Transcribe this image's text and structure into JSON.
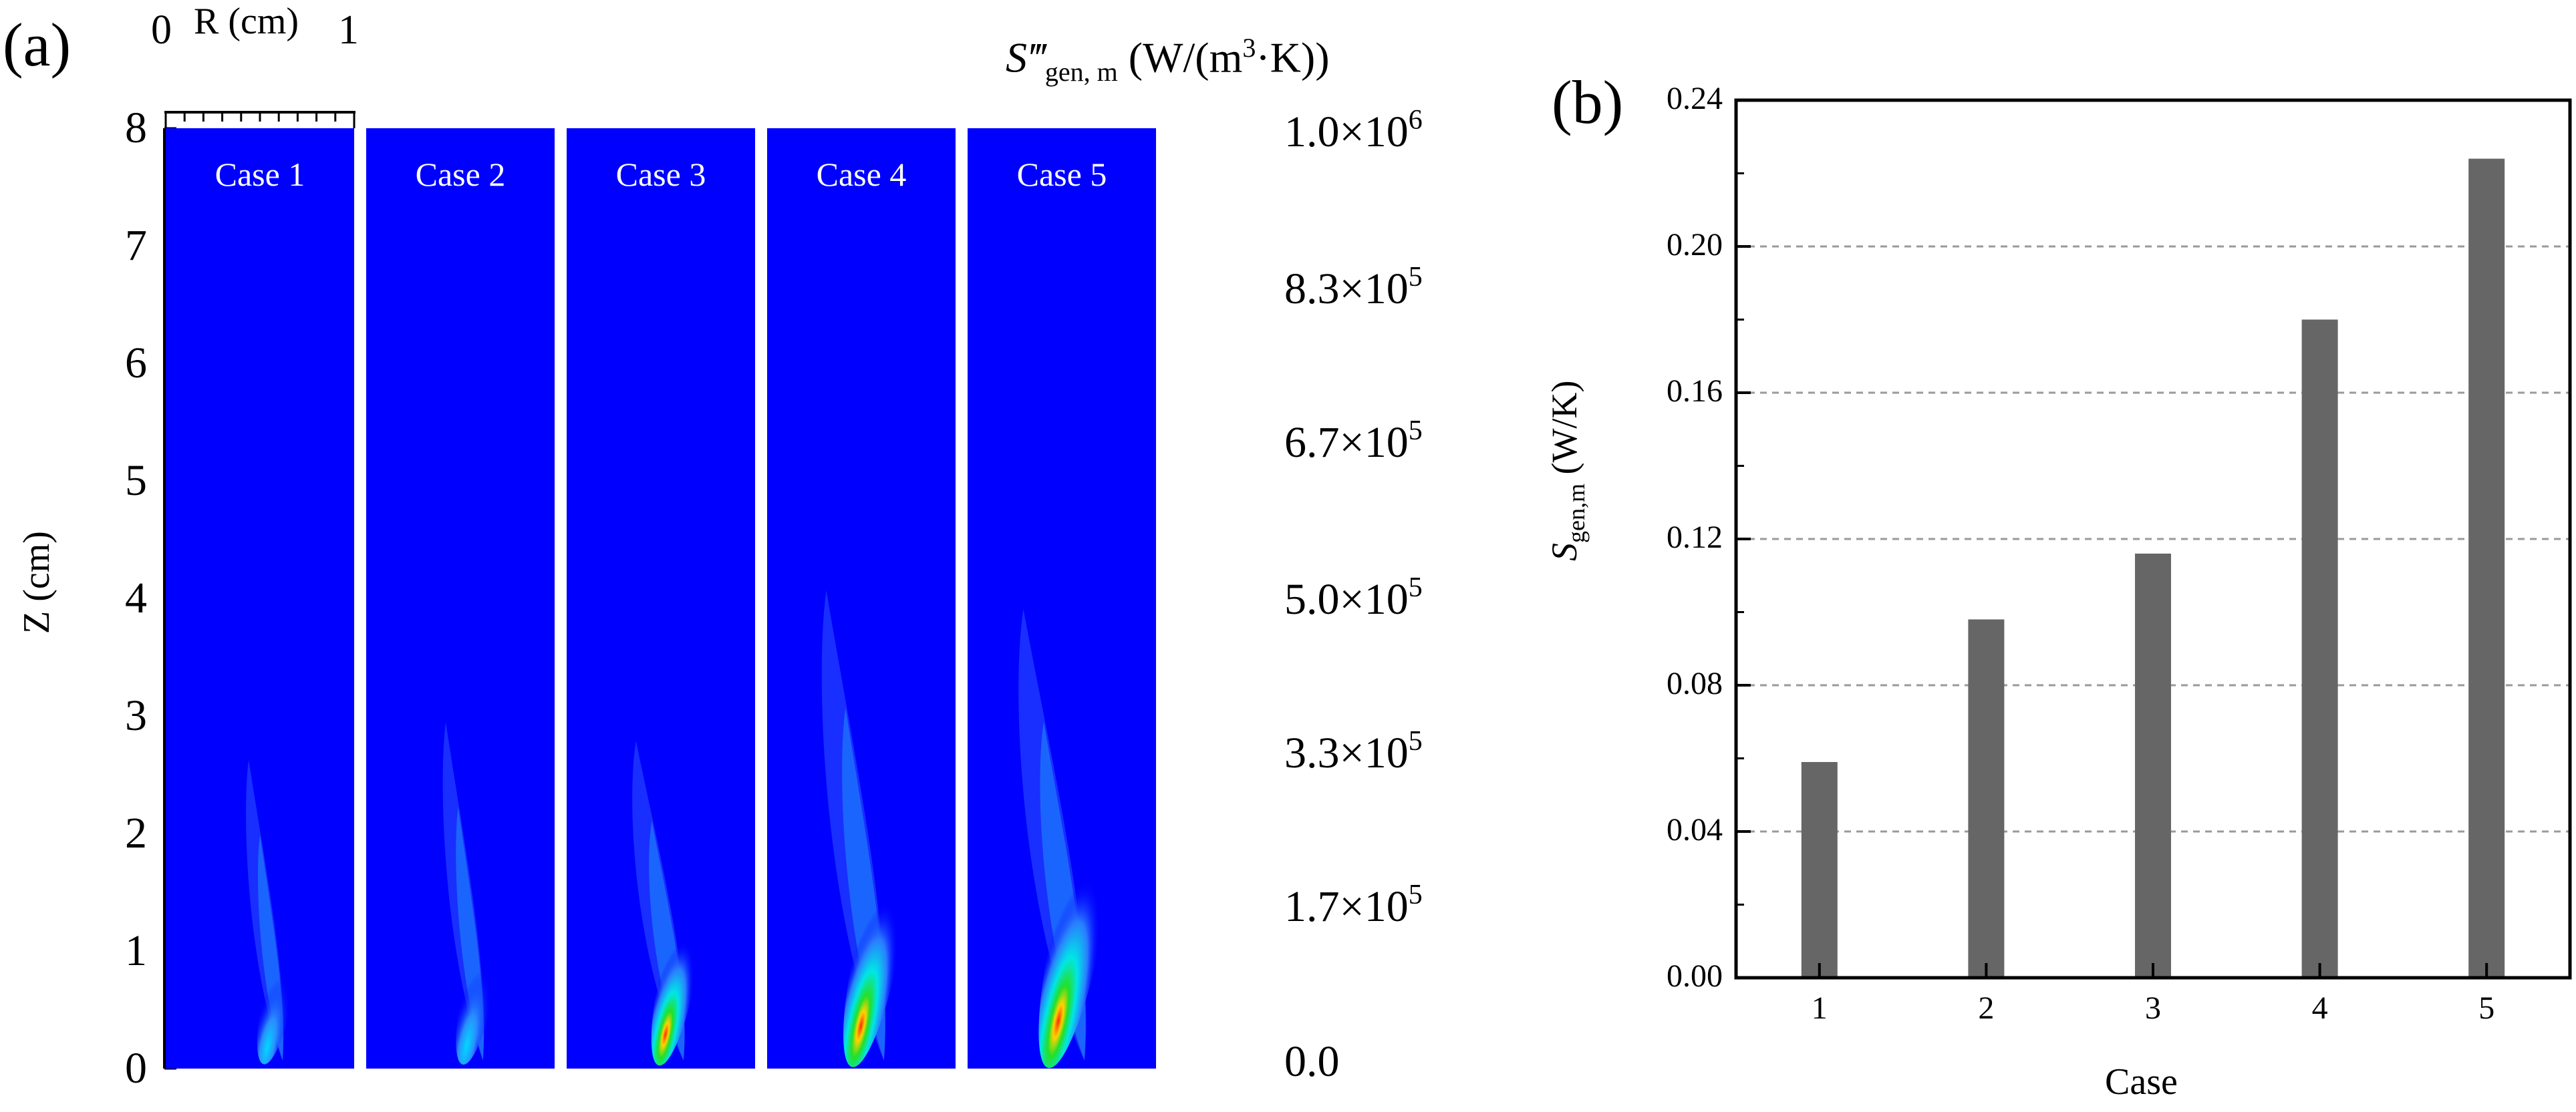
{
  "panel_a": {
    "label": "(a)",
    "r_axis": {
      "label": "R (cm)",
      "start": "0",
      "end": "1"
    },
    "z_axis": {
      "label": "Z (cm)",
      "ticks": [
        "0",
        "1",
        "2",
        "3",
        "4",
        "5",
        "6",
        "7",
        "8"
      ]
    },
    "colorbar": {
      "title_symbol": "S‴",
      "title_sub": "gen, m",
      "title_unit_prefix": "(W/(m",
      "title_unit_exp": "3",
      "title_unit_suffix": "·K))",
      "ticks": [
        {
          "mantissa": "1.0×10",
          "exp": "6"
        },
        {
          "mantissa": "8.3×10",
          "exp": "5"
        },
        {
          "mantissa": "6.7×10",
          "exp": "5"
        },
        {
          "mantissa": "5.0×10",
          "exp": "5"
        },
        {
          "mantissa": "3.3×10",
          "exp": "5"
        },
        {
          "mantissa": "1.7×10",
          "exp": "5"
        },
        {
          "mantissa": "0.0",
          "exp": ""
        }
      ]
    },
    "cases": [
      "Case 1",
      "Case 2",
      "Case 3",
      "Case 4",
      "Case 5"
    ],
    "colors": {
      "background_field": "#0000ff"
    }
  },
  "panel_b": {
    "label": "(b)",
    "ylabel_main": "S",
    "ylabel_sub": "gen,m",
    "ylabel_unit": " (W/K)",
    "xlabel": "Case",
    "yticks": [
      "0.00",
      "0.04",
      "0.08",
      "0.12",
      "0.16",
      "0.20",
      "0.24"
    ],
    "colors": {
      "bar": "#666666",
      "grid": "#9a9a9a"
    }
  },
  "chart_data": {
    "type": "bar",
    "title": "",
    "xlabel": "Case",
    "ylabel": "Sgen,m (W/K)",
    "categories": [
      "1",
      "2",
      "3",
      "4",
      "5"
    ],
    "values": [
      0.059,
      0.098,
      0.116,
      0.18,
      0.224
    ],
    "ylim": [
      0,
      0.24
    ],
    "grid": true
  }
}
